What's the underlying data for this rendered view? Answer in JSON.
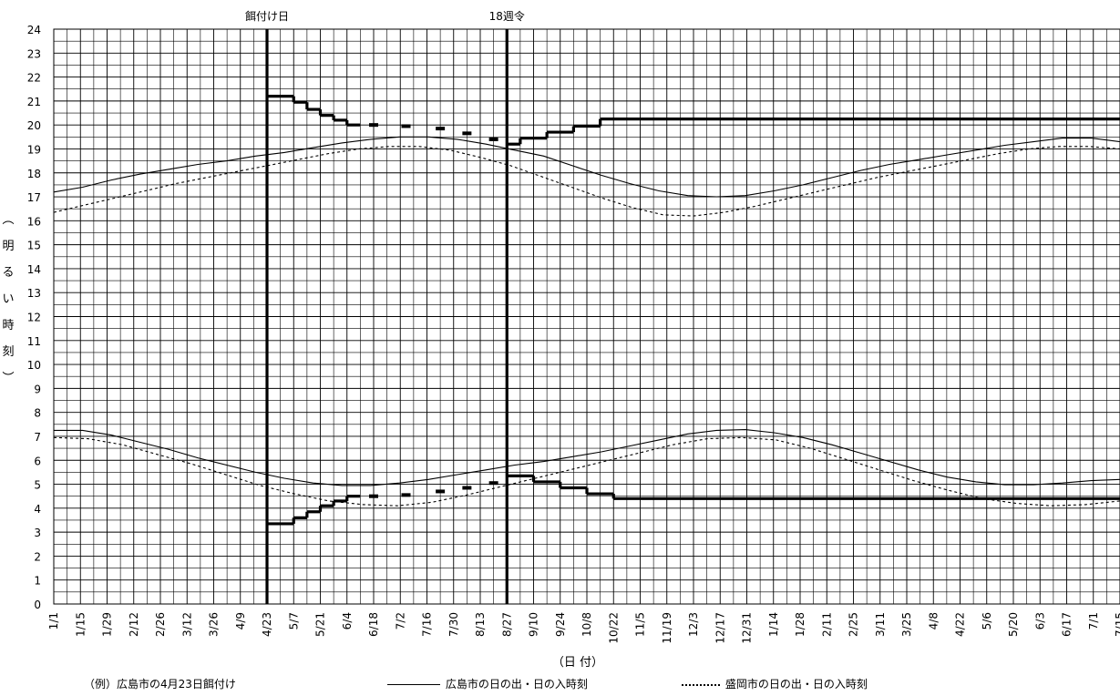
{
  "chart_data": {
    "type": "line",
    "ylabel": "（明るい時刻）",
    "xlabel": "（日 付）",
    "ylim": [
      0,
      24
    ],
    "yticks": [
      0,
      1,
      2,
      3,
      4,
      5,
      6,
      7,
      8,
      9,
      10,
      11,
      12,
      13,
      14,
      15,
      16,
      17,
      18,
      19,
      20,
      21,
      22,
      23,
      24
    ],
    "x_tick_labels": [
      "1/1",
      "1/15",
      "1/29",
      "2/12",
      "2/26",
      "3/12",
      "3/26",
      "4/9",
      "4/23",
      "5/7",
      "5/21",
      "6/4",
      "6/18",
      "7/2",
      "7/16",
      "7/30",
      "8/13",
      "8/27",
      "9/10",
      "9/24",
      "10/8",
      "10/22",
      "11/5",
      "11/19",
      "12/3",
      "12/17",
      "12/31",
      "1/14",
      "1/28",
      "2/11",
      "2/25",
      "3/11",
      "3/25",
      "4/8",
      "4/22",
      "5/6",
      "5/20",
      "6/3",
      "6/17",
      "7/1",
      "7/15"
    ],
    "grid": true,
    "vlines": [
      {
        "label": "餌付け日",
        "date": "4/23"
      },
      {
        "label": "18週令",
        "date": "8/27"
      }
    ],
    "series": [
      {
        "name": "広島市の日の出・日の入時刻",
        "style": "solid",
        "sunset": [
          17.2,
          17.4,
          17.7,
          17.95,
          18.15,
          18.35,
          18.5,
          18.7,
          18.85,
          19.05,
          19.25,
          19.4,
          19.5,
          19.5,
          19.4,
          19.2,
          18.95,
          18.7,
          18.3,
          17.9,
          17.55,
          17.25,
          17.05,
          17.0,
          17.05,
          17.25,
          17.5,
          17.8,
          18.1,
          18.35,
          18.55,
          18.75,
          18.95,
          19.15,
          19.3,
          19.45,
          19.45,
          19.3
        ],
        "sunrise": [
          7.25,
          7.25,
          7.05,
          6.75,
          6.45,
          6.1,
          5.8,
          5.5,
          5.25,
          5.05,
          4.95,
          4.95,
          5.05,
          5.2,
          5.4,
          5.6,
          5.8,
          5.95,
          6.15,
          6.35,
          6.6,
          6.85,
          7.1,
          7.25,
          7.28,
          7.15,
          6.95,
          6.65,
          6.3,
          5.95,
          5.6,
          5.3,
          5.1,
          4.98,
          4.98,
          5.05,
          5.15,
          5.2
        ]
      },
      {
        "name": "盛岡市の日の出・日の入時刻",
        "style": "dotted",
        "sunset": [
          16.35,
          16.65,
          16.95,
          17.25,
          17.55,
          17.8,
          18.05,
          18.3,
          18.55,
          18.8,
          19.0,
          19.1,
          19.1,
          18.95,
          18.65,
          18.3,
          17.85,
          17.4,
          16.95,
          16.55,
          16.25,
          16.2,
          16.35,
          16.6,
          16.9,
          17.2,
          17.5,
          17.8,
          18.05,
          18.3,
          18.55,
          18.8,
          19.0,
          19.1,
          19.1,
          19.0
        ],
        "sunrise": [
          6.95,
          6.9,
          6.65,
          6.25,
          5.85,
          5.4,
          4.95,
          4.6,
          4.3,
          4.15,
          4.1,
          4.25,
          4.55,
          4.9,
          5.25,
          5.6,
          5.95,
          6.3,
          6.65,
          6.9,
          6.95,
          6.85,
          6.5,
          6.05,
          5.6,
          5.15,
          4.75,
          4.4,
          4.2,
          4.1,
          4.15,
          4.3
        ]
      },
      {
        "name": "（例）広島市の4月23日餌付け",
        "style": "bold-step",
        "evening_steps": [
          {
            "from": "4/23",
            "to": "5/7",
            "value": 21.2
          },
          {
            "from": "5/7",
            "to": "5/14",
            "value": 20.95
          },
          {
            "from": "5/14",
            "to": "5/21",
            "value": 20.65
          },
          {
            "from": "5/21",
            "to": "5/28",
            "value": 20.4
          },
          {
            "from": "5/28",
            "to": "6/4",
            "value": 20.2
          },
          {
            "from": "6/4",
            "to": "6/11",
            "value": 20.0
          }
        ],
        "evening_dashes": [
          {
            "date": "6/18",
            "value": 20.0
          },
          {
            "date": "7/5",
            "value": 19.95
          },
          {
            "date": "7/23",
            "value": 19.85
          },
          {
            "date": "8/6",
            "value": 19.65
          },
          {
            "date": "8/20",
            "value": 19.4
          }
        ],
        "evening_steps_after": [
          {
            "from": "8/27",
            "to": "9/3",
            "value": 19.2
          },
          {
            "from": "9/3",
            "to": "9/17",
            "value": 19.45
          },
          {
            "from": "9/17",
            "to": "10/1",
            "value": 19.7
          },
          {
            "from": "10/1",
            "to": "10/15",
            "value": 19.95
          },
          {
            "from": "10/15",
            "to": "end",
            "value": 20.25
          }
        ],
        "morning_steps": [
          {
            "from": "4/23",
            "to": "5/7",
            "value": 3.35
          },
          {
            "from": "5/7",
            "to": "5/14",
            "value": 3.6
          },
          {
            "from": "5/14",
            "to": "5/21",
            "value": 3.85
          },
          {
            "from": "5/21",
            "to": "5/28",
            "value": 4.1
          },
          {
            "from": "5/28",
            "to": "6/4",
            "value": 4.3
          },
          {
            "from": "6/4",
            "to": "6/11",
            "value": 4.5
          }
        ],
        "morning_dashes": [
          {
            "date": "6/18",
            "value": 4.5
          },
          {
            "date": "7/5",
            "value": 4.55
          },
          {
            "date": "7/23",
            "value": 4.7
          },
          {
            "date": "8/6",
            "value": 4.85
          },
          {
            "date": "8/20",
            "value": 5.05
          }
        ],
        "morning_steps_after": [
          {
            "from": "8/27",
            "to": "9/10",
            "value": 5.35
          },
          {
            "from": "9/10",
            "to": "9/24",
            "value": 5.1
          },
          {
            "from": "9/24",
            "to": "10/8",
            "value": 4.85
          },
          {
            "from": "10/8",
            "to": "10/22",
            "value": 4.6
          },
          {
            "from": "10/22",
            "to": "end",
            "value": 4.4
          }
        ]
      }
    ]
  },
  "legend": {
    "example": "（例）広島市の4月23日餌付け",
    "hiroshima": "広島市の日の出・日の入時刻",
    "morioka": "盛岡市の日の出・日の入時刻"
  }
}
